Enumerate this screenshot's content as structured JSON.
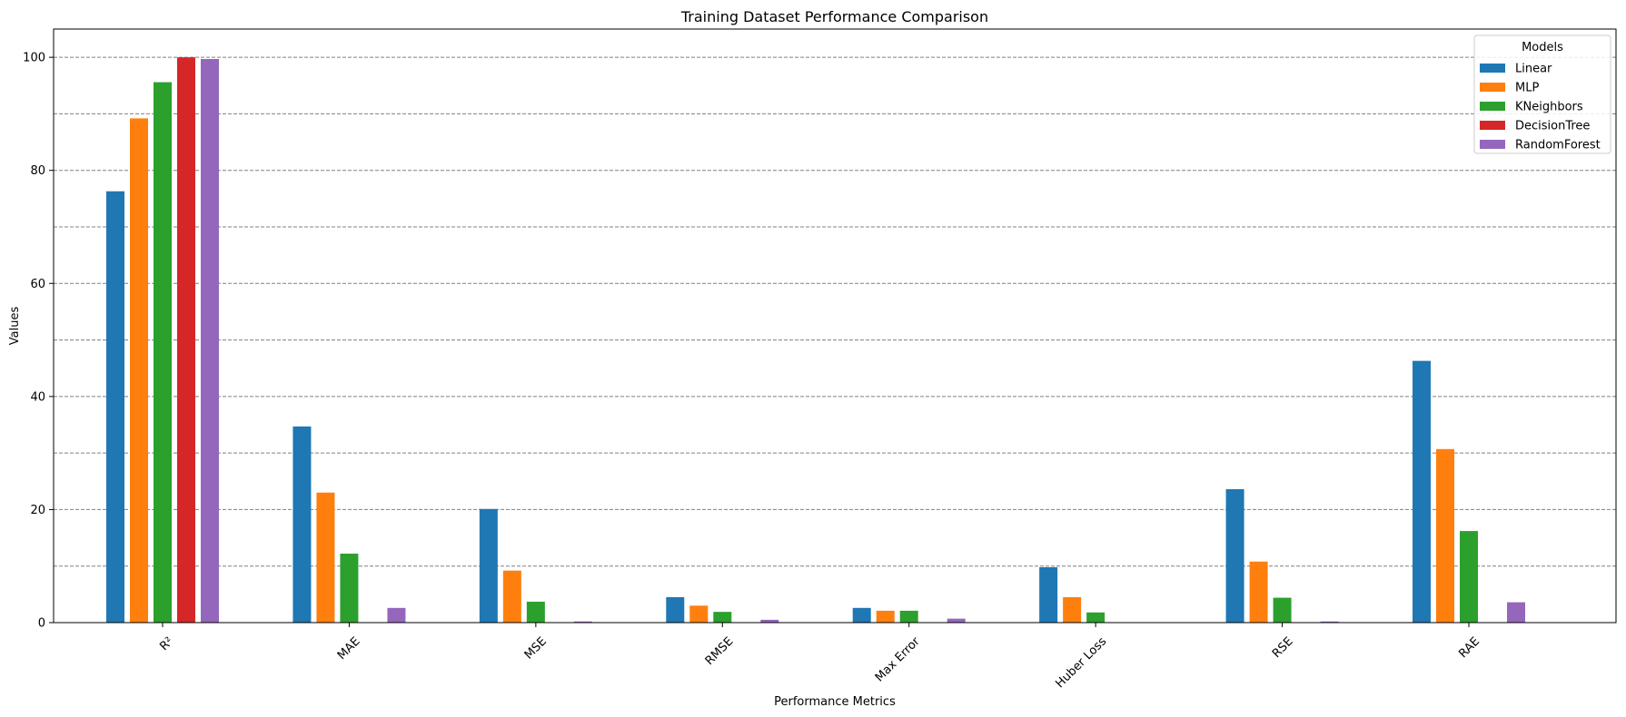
{
  "chart_data": {
    "type": "bar",
    "title": "Training Dataset Performance Comparison",
    "xlabel": "Performance Metrics",
    "ylabel": "Values",
    "ylim": [
      0,
      105
    ],
    "yticks": [
      0,
      20,
      40,
      60,
      80,
      100
    ],
    "grid": true,
    "legend_title": "Models",
    "legend_position": "top-right",
    "categories": [
      "R²",
      "MAE",
      "MSE",
      "RMSE",
      "Max Error",
      "Huber Loss",
      "RSE",
      "RAE"
    ],
    "series": [
      {
        "name": "Linear",
        "color": "#1f77b4",
        "values": [
          76.3,
          34.7,
          20.1,
          4.5,
          2.6,
          9.8,
          23.6,
          46.3
        ]
      },
      {
        "name": "MLP",
        "color": "#ff7f0e",
        "values": [
          89.2,
          23.0,
          9.2,
          3.0,
          2.1,
          4.5,
          10.8,
          30.7
        ]
      },
      {
        "name": "KNeighbors",
        "color": "#2ca02c",
        "values": [
          95.6,
          12.2,
          3.7,
          1.9,
          2.1,
          1.8,
          4.4,
          16.2
        ]
      },
      {
        "name": "DecisionTree",
        "color": "#d62728",
        "values": [
          100.0,
          0.0,
          0.0,
          0.0,
          0.0,
          0.0,
          0.0,
          0.0
        ]
      },
      {
        "name": "RandomForest",
        "color": "#9467bd",
        "values": [
          99.7,
          2.6,
          0.2,
          0.5,
          0.7,
          0.0,
          0.2,
          3.6
        ]
      }
    ]
  }
}
